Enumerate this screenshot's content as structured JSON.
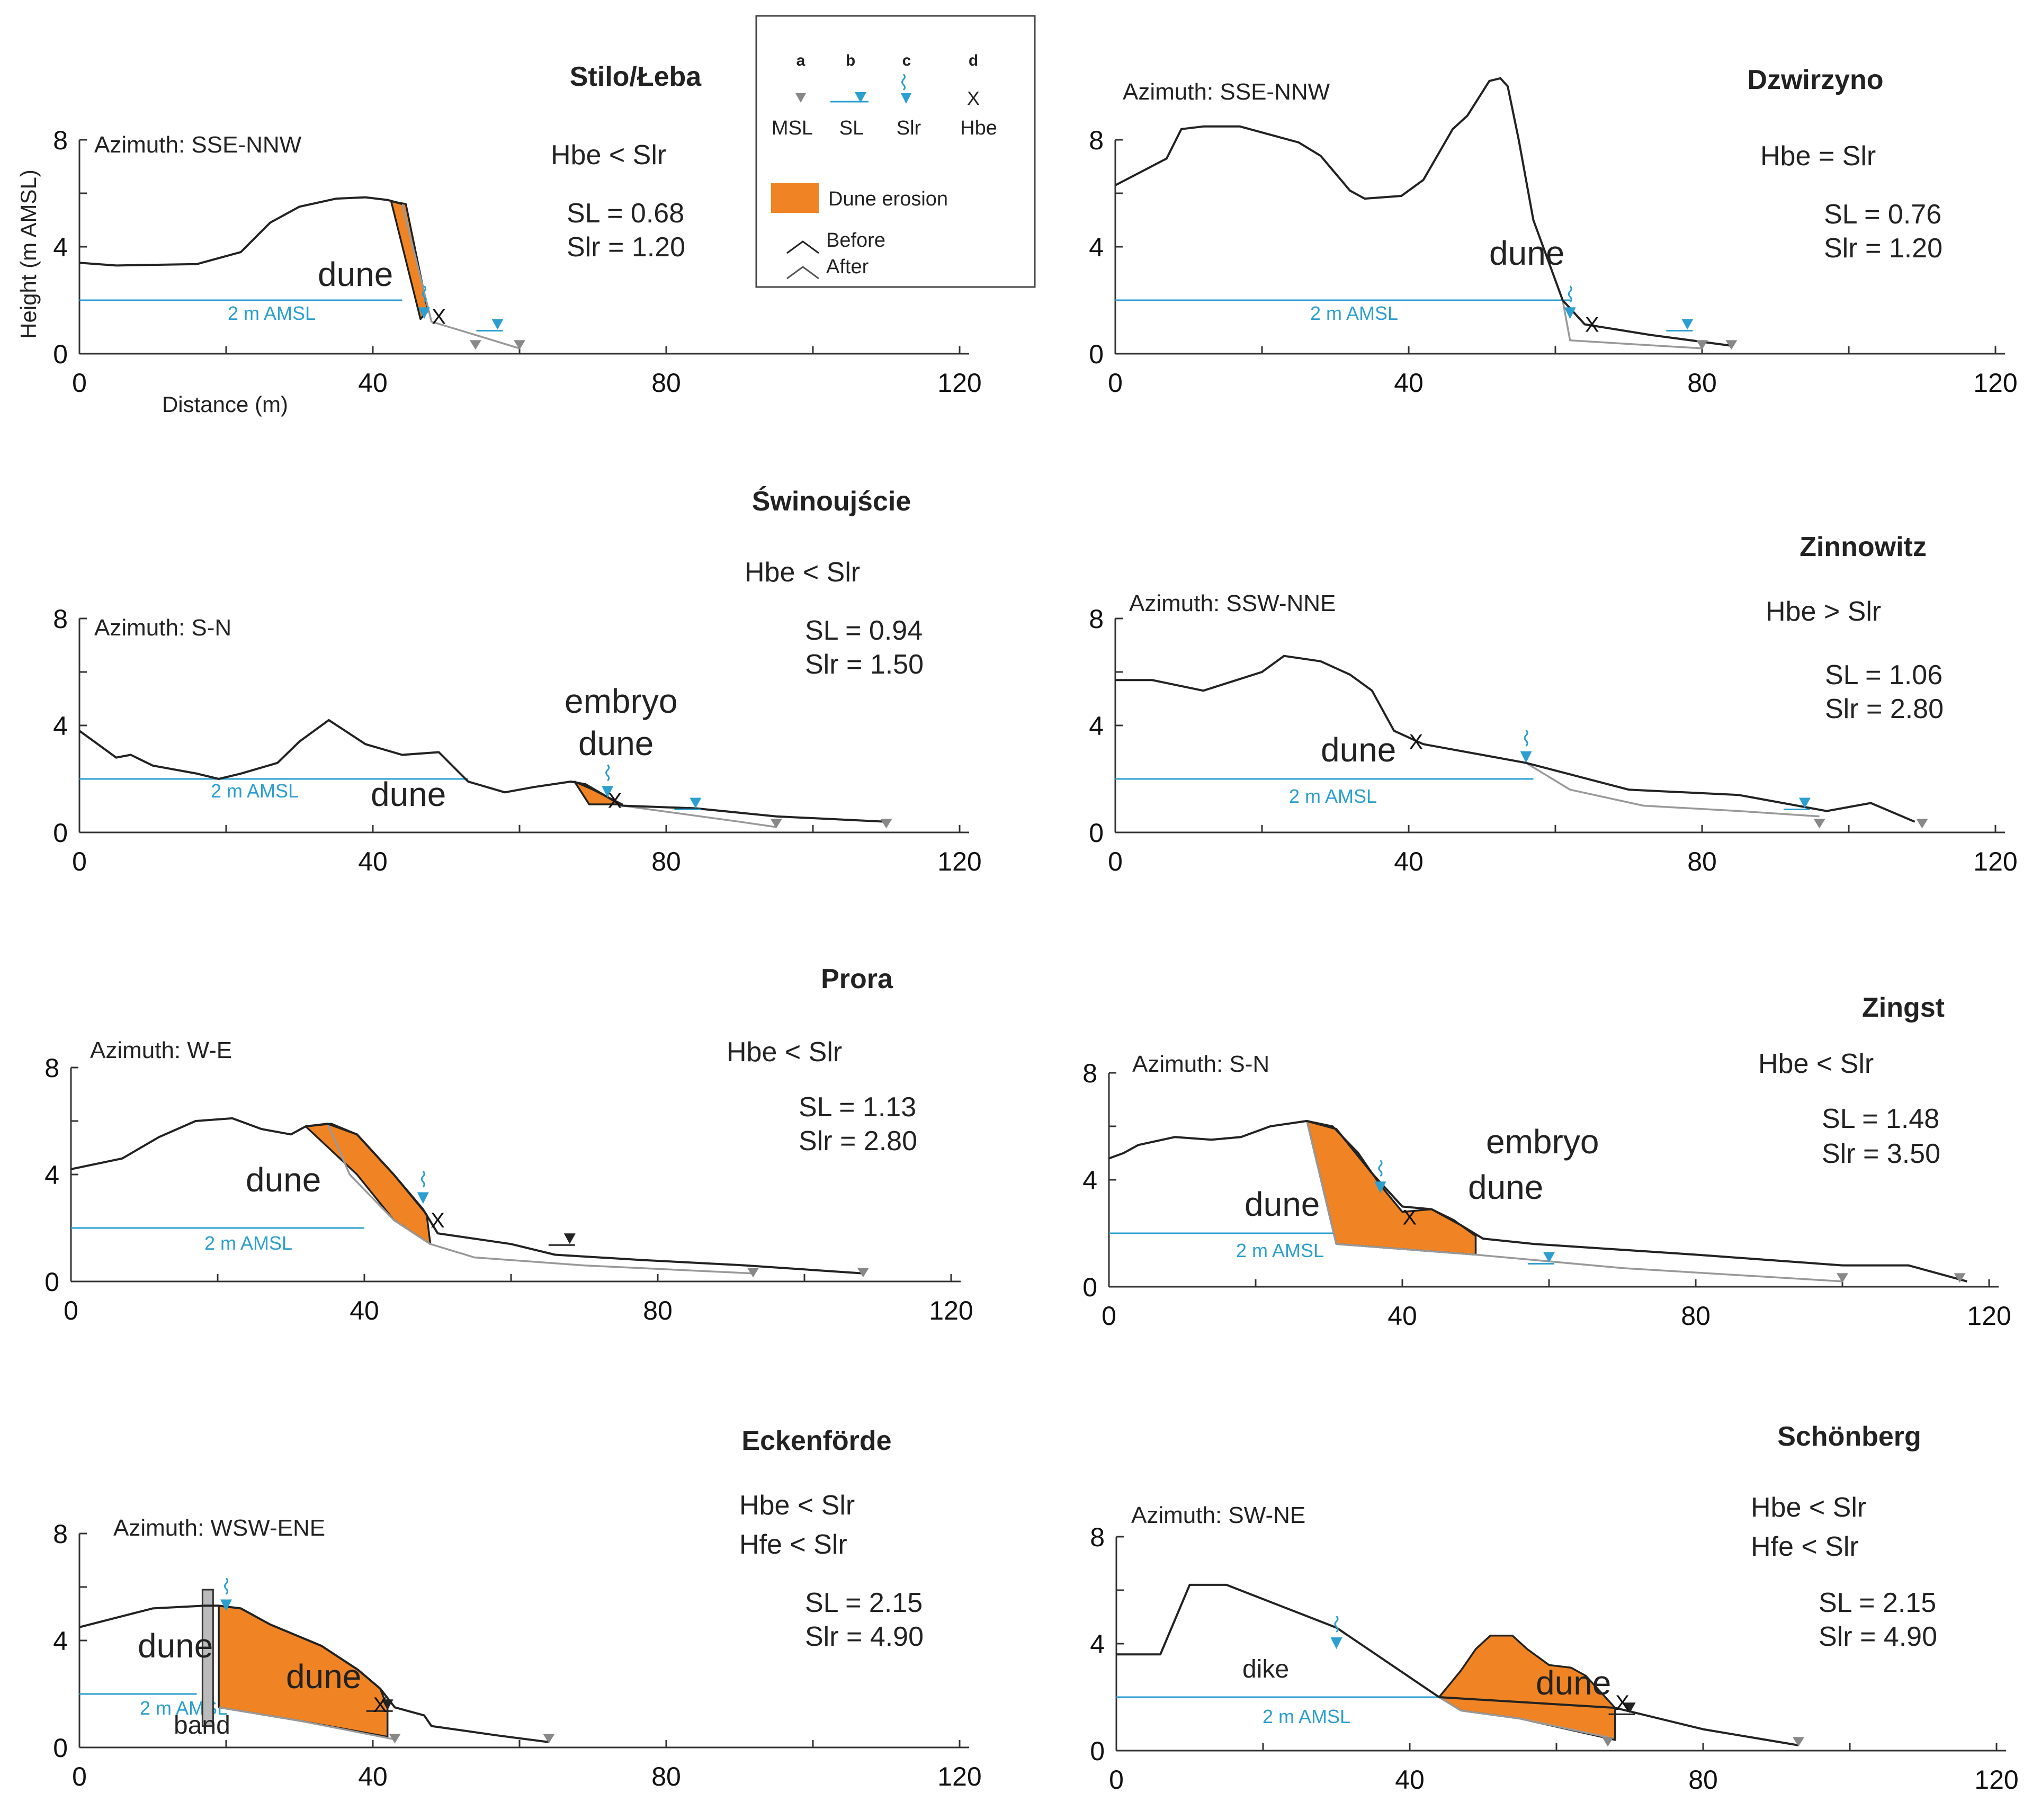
{
  "legend": {
    "letters": [
      "a",
      "b",
      "c",
      "d"
    ],
    "symbols": [
      "MSL",
      "SL",
      "Slr",
      "Hbe"
    ],
    "hbe_marker": "X",
    "erosion": "Dune erosion",
    "before": "Before",
    "after": "After",
    "colors": {
      "erosion": "#f08424",
      "water": "#2b9fcf",
      "msl": "#888888"
    }
  },
  "axes": {
    "y_label": "Height (m AMSL)",
    "x_label": "Distance (m)",
    "y_ticks": [
      "0",
      "4",
      "8"
    ],
    "x_ticks": [
      "0",
      "40",
      "80",
      "120"
    ]
  },
  "reference_line": "2 m AMSL",
  "panels": [
    {
      "id": "stilo",
      "title": "Stilo/Łeba",
      "azimuth": "Azimuth: SSE-NNW",
      "conditions": [
        "Hbe < Slr"
      ],
      "sl": "SL = 0.68",
      "slr": "Slr = 1.20",
      "labels": [
        "dune"
      ],
      "profile_before": [
        [
          0,
          3.4
        ],
        [
          5,
          3.3
        ],
        [
          16,
          3.35
        ],
        [
          22,
          3.8
        ],
        [
          26,
          4.9
        ],
        [
          30,
          5.5
        ],
        [
          35,
          5.8
        ],
        [
          39,
          5.85
        ],
        [
          42,
          5.75
        ],
        [
          44,
          5.6
        ]
      ],
      "profile_after": [
        [
          44,
          5.6
        ],
        [
          48,
          1.2
        ],
        [
          54,
          0.7
        ],
        [
          60,
          0.2
        ]
      ],
      "erosion": [
        [
          42.5,
          5.7
        ],
        [
          44.5,
          5.6
        ],
        [
          47.5,
          1.6
        ],
        [
          46.5,
          1.3
        ]
      ],
      "msl_x": [
        54,
        60
      ],
      "sl_x": 57,
      "slr_x": 47,
      "hbe": [
        49,
        1.4
      ],
      "ref_line_x": [
        0,
        44
      ]
    },
    {
      "id": "dzwirzyno",
      "title": "Dzwirzyno",
      "azimuth": "Azimuth: SSE-NNW",
      "conditions": [
        "Hbe = Slr"
      ],
      "sl": "SL = 0.76",
      "slr": "Slr = 1.20",
      "labels": [
        "dune"
      ],
      "profile_before": [
        [
          0,
          6.3
        ],
        [
          7,
          7.3
        ],
        [
          9,
          8.4
        ],
        [
          12,
          8.5
        ],
        [
          17,
          8.5
        ],
        [
          25,
          7.9
        ],
        [
          28,
          7.4
        ],
        [
          32,
          6.1
        ],
        [
          34,
          5.8
        ],
        [
          39,
          5.9
        ],
        [
          42,
          6.5
        ],
        [
          46,
          8.4
        ],
        [
          48,
          8.9
        ],
        [
          51,
          10.2
        ],
        [
          52.5,
          10.3
        ],
        [
          53.5,
          10
        ],
        [
          55,
          8
        ],
        [
          57,
          5
        ],
        [
          61,
          2
        ],
        [
          64,
          1.1
        ],
        [
          73,
          0.7
        ],
        [
          84,
          0.3
        ]
      ],
      "profile_after": [
        [
          61,
          2
        ],
        [
          62,
          0.5
        ],
        [
          80,
          0.2
        ]
      ],
      "erosion": [],
      "msl_x": [
        80,
        84
      ],
      "sl_x": 78,
      "slr_x": 62,
      "hbe": [
        65,
        1.1
      ],
      "ref_line_x": [
        0,
        62
      ]
    },
    {
      "id": "swinoujscie",
      "title": "Świnoujście",
      "azimuth": "Azimuth: S-N",
      "conditions": [
        "Hbe < Slr"
      ],
      "sl": "SL = 0.94",
      "slr": "Slr = 1.50",
      "labels": [
        "dune",
        "embryo",
        "dune"
      ],
      "profile_before": [
        [
          0,
          3.8
        ],
        [
          3,
          3.2
        ],
        [
          5,
          2.8
        ],
        [
          7,
          2.9
        ],
        [
          10,
          2.5
        ],
        [
          16,
          2.2
        ],
        [
          19,
          2
        ],
        [
          22,
          2.2
        ],
        [
          27,
          2.6
        ],
        [
          30,
          3.4
        ],
        [
          34,
          4.2
        ],
        [
          39,
          3.3
        ],
        [
          44,
          2.9
        ],
        [
          49,
          3
        ],
        [
          53,
          1.9
        ],
        [
          58,
          1.5
        ],
        [
          62,
          1.7
        ],
        [
          67,
          1.9
        ],
        [
          69,
          1.8
        ],
        [
          74,
          1
        ],
        [
          84,
          0.9
        ],
        [
          95,
          0.6
        ],
        [
          110,
          0.4
        ]
      ],
      "profile_after": [
        [
          74,
          1
        ],
        [
          90,
          0.4
        ],
        [
          95,
          0.2
        ]
      ],
      "erosion": [
        [
          67.5,
          1.9
        ],
        [
          70,
          1.6
        ],
        [
          74,
          1.05
        ],
        [
          69.5,
          1.05
        ]
      ],
      "msl_x": [
        95,
        110
      ],
      "sl_x": 84,
      "slr_x": 72,
      "hbe": [
        73,
        1.2
      ],
      "ref_line_x": [
        0,
        53
      ]
    },
    {
      "id": "zinnowitz",
      "title": "Zinnowitz",
      "azimuth": "Azimuth: SSW-NNE",
      "conditions": [
        "Hbe > Slr"
      ],
      "sl": "SL = 1.06",
      "slr": "Slr = 2.80",
      "labels": [
        "dune"
      ],
      "profile_before": [
        [
          0,
          5.7
        ],
        [
          5,
          5.7
        ],
        [
          12,
          5.3
        ],
        [
          20,
          6
        ],
        [
          23,
          6.6
        ],
        [
          28,
          6.4
        ],
        [
          32,
          5.9
        ],
        [
          35,
          5.3
        ],
        [
          38,
          3.8
        ],
        [
          42,
          3.3
        ],
        [
          56,
          2.6
        ],
        [
          70,
          1.6
        ],
        [
          85,
          1.4
        ],
        [
          97,
          0.8
        ],
        [
          103,
          1.1
        ],
        [
          109,
          0.4
        ]
      ],
      "profile_after": [
        [
          56,
          2.6
        ],
        [
          62,
          1.6
        ],
        [
          72,
          1
        ],
        [
          85,
          0.8
        ],
        [
          96,
          0.6
        ]
      ],
      "erosion": [],
      "msl_x": [
        96,
        110
      ],
      "sl_x": 94,
      "slr_x": 56,
      "hbe": [
        41,
        3.4
      ],
      "ref_line_x": [
        0,
        57
      ]
    },
    {
      "id": "prora",
      "title": "Prora",
      "azimuth": "Azimuth: W-E",
      "conditions": [
        "Hbe < Slr"
      ],
      "sl": "SL = 1.13",
      "slr": "Slr = 2.80",
      "labels": [
        "dune"
      ],
      "profile_before": [
        [
          0,
          4.2
        ],
        [
          7,
          4.6
        ],
        [
          12,
          5.4
        ],
        [
          17,
          6
        ],
        [
          22,
          6.1
        ],
        [
          26,
          5.7
        ],
        [
          30,
          5.5
        ],
        [
          32,
          5.8
        ],
        [
          35,
          5.9
        ],
        [
          39,
          5.5
        ],
        [
          44,
          4
        ],
        [
          48,
          2.7
        ],
        [
          50,
          1.8
        ],
        [
          55,
          1.6
        ],
        [
          60,
          1.4
        ],
        [
          66,
          1
        ],
        [
          78,
          0.8
        ],
        [
          92,
          0.6
        ],
        [
          108,
          0.3
        ]
      ],
      "profile_after": [
        [
          35,
          5.9
        ],
        [
          38,
          4
        ],
        [
          44,
          2.3
        ],
        [
          49,
          1.4
        ],
        [
          55,
          0.9
        ],
        [
          70,
          0.6
        ],
        [
          93,
          0.3
        ]
      ],
      "erosion": [
        [
          32,
          5.8
        ],
        [
          35.5,
          5.9
        ],
        [
          39,
          5.5
        ],
        [
          44,
          4
        ],
        [
          48.5,
          2.5
        ],
        [
          49,
          1.4
        ],
        [
          44,
          2.3
        ],
        [
          39,
          4
        ]
      ],
      "msl_x": [
        93,
        108
      ],
      "sl_x": 68,
      "slr_x": 48,
      "hbe": [
        50,
        2.3
      ],
      "ref_line_x": [
        0,
        40
      ]
    },
    {
      "id": "zingst",
      "title": "Zingst",
      "azimuth": "Azimuth: S-N",
      "conditions": [
        "Hbe < Slr"
      ],
      "sl": "SL = 1.48",
      "slr": "Slr = 3.50",
      "labels": [
        "dune",
        "embryo",
        "dune"
      ],
      "profile_before": [
        [
          0,
          4.8
        ],
        [
          2,
          5
        ],
        [
          4,
          5.3
        ],
        [
          9,
          5.6
        ],
        [
          14,
          5.5
        ],
        [
          18,
          5.6
        ],
        [
          22,
          6
        ],
        [
          27,
          6.2
        ],
        [
          31,
          5.9
        ],
        [
          36,
          4.2
        ],
        [
          40,
          3
        ],
        [
          44,
          2.9
        ],
        [
          48,
          2.3
        ],
        [
          51,
          1.8
        ],
        [
          58,
          1.6
        ],
        [
          80,
          1.2
        ],
        [
          100,
          0.8
        ],
        [
          109,
          0.8
        ],
        [
          117,
          0.2
        ]
      ],
      "profile_after": [
        [
          27,
          6.2
        ],
        [
          31,
          1.6
        ],
        [
          50,
          1.2
        ],
        [
          70,
          0.7
        ],
        [
          100,
          0.2
        ]
      ],
      "erosion": [
        [
          27,
          6.2
        ],
        [
          30.5,
          6.0
        ],
        [
          34,
          5
        ],
        [
          37,
          3.8
        ],
        [
          40,
          2.8
        ],
        [
          44,
          2.9
        ],
        [
          47,
          2.5
        ],
        [
          50,
          1.9
        ],
        [
          50,
          1.2
        ],
        [
          31,
          1.6
        ]
      ],
      "msl_x": [
        100,
        116
      ],
      "sl_x": 60,
      "slr_x": 37,
      "hbe": [
        41,
        2.6
      ],
      "ref_line_x": [
        0,
        31
      ]
    },
    {
      "id": "eckenforde",
      "title": "Eckenförde",
      "azimuth": "Azimuth: WSW-ENE",
      "conditions": [
        "Hbe < Slr",
        "Hfe < Slr"
      ],
      "sl": "SL = 2.15",
      "slr": "Slr = 4.90",
      "labels": [
        "dune",
        "dune",
        "band"
      ],
      "profile_before": [
        [
          0,
          4.5
        ],
        [
          10,
          5.2
        ],
        [
          17,
          5.3
        ],
        [
          19,
          5.3
        ],
        [
          22,
          5.2
        ],
        [
          26,
          4.6
        ],
        [
          33,
          3.8
        ],
        [
          38,
          2.9
        ],
        [
          41,
          2.2
        ],
        [
          43,
          1.5
        ],
        [
          47,
          1.2
        ],
        [
          48,
          0.8
        ],
        [
          57,
          0.45
        ],
        [
          64,
          0.2
        ]
      ],
      "profile_after": [
        [
          19,
          1.5
        ],
        [
          30,
          1
        ],
        [
          43,
          0.3
        ]
      ],
      "erosion": [
        [
          19,
          5.3
        ],
        [
          22,
          5.2
        ],
        [
          26,
          4.6
        ],
        [
          33,
          3.8
        ],
        [
          38,
          2.9
        ],
        [
          41,
          2.2
        ],
        [
          42,
          1.5
        ],
        [
          42,
          0.4
        ],
        [
          30,
          1
        ],
        [
          19,
          1.5
        ]
      ],
      "seawall_x": 17.5,
      "msl_x": [
        43,
        64
      ],
      "sl_x": 42,
      "slr_x": 20,
      "hbe": [
        41,
        1.6
      ],
      "ref_line_x": [
        0,
        16
      ]
    },
    {
      "id": "schonberg",
      "title": "Schönberg",
      "azimuth": "Azimuth: SW-NE",
      "conditions": [
        "Hbe < Slr",
        "Hfe < Slr"
      ],
      "sl": "SL = 2.15",
      "slr": "Slr = 4.90",
      "labels": [
        "dike",
        "dune"
      ],
      "profile_before": [
        [
          0,
          3.6
        ],
        [
          6,
          3.6
        ],
        [
          10,
          6.2
        ],
        [
          15,
          6.2
        ],
        [
          30,
          4.6
        ],
        [
          44,
          2
        ],
        [
          68,
          1.6
        ],
        [
          80,
          0.8
        ],
        [
          93,
          0.2
        ]
      ],
      "profile_after": [
        [
          44,
          2
        ],
        [
          47,
          1.5
        ],
        [
          55,
          1.2
        ],
        [
          67,
          0.5
        ]
      ],
      "erosion": [
        [
          44,
          2
        ],
        [
          47,
          3
        ],
        [
          49,
          3.8
        ],
        [
          51,
          4.3
        ],
        [
          54,
          4.3
        ],
        [
          56,
          3.8
        ],
        [
          59,
          3.2
        ],
        [
          62,
          3.1
        ],
        [
          64,
          2.8
        ],
        [
          66,
          2.2
        ],
        [
          68,
          1.6
        ],
        [
          68,
          0.4
        ],
        [
          55,
          1.2
        ],
        [
          47,
          1.5
        ]
      ],
      "msl_x": [
        67,
        93
      ],
      "sl_x": 70,
      "slr_x": 30,
      "hbe": [
        69,
        1.8
      ],
      "ref_line_x": [
        0,
        44
      ]
    }
  ]
}
